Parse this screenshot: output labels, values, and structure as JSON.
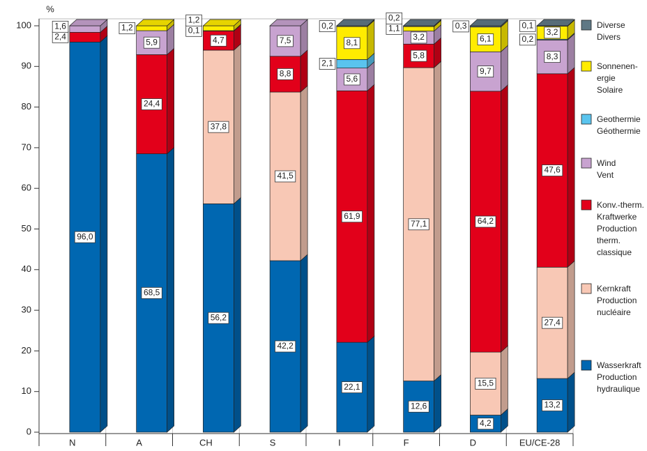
{
  "chart_data": {
    "type": "bar",
    "stacked": true,
    "y_label": "%",
    "categories": [
      "N",
      "A",
      "CH",
      "S",
      "I",
      "F",
      "D",
      "EU/CE-28"
    ],
    "ylim": [
      0,
      100
    ],
    "yticks": [
      0,
      10,
      20,
      30,
      40,
      50,
      60,
      70,
      80,
      90,
      100
    ],
    "series": [
      {
        "name": [
          "Wasserkraft",
          "Production",
          "hydraulique"
        ],
        "color": "#0067b1",
        "values": [
          96.0,
          68.5,
          56.2,
          42.2,
          22.1,
          12.6,
          4.2,
          13.2
        ],
        "value_labels": [
          "96,0",
          "68,5",
          "56,2",
          "42,2",
          "22,1",
          "12,6",
          "4,2",
          "13,2"
        ]
      },
      {
        "name": [
          "Kernkraft",
          "Production",
          "nucléaire"
        ],
        "color": "#f8c8b5",
        "values": [
          null,
          null,
          37.8,
          41.5,
          null,
          77.1,
          15.5,
          27.4
        ],
        "value_labels": [
          null,
          null,
          "37,8",
          "41,5",
          null,
          "77,1",
          "15,5",
          "27,4"
        ]
      },
      {
        "name": [
          "Konv.-therm.",
          "Kraftwerke",
          "Production",
          "therm.",
          "classique"
        ],
        "color": "#e2001a",
        "values": [
          2.4,
          24.4,
          4.7,
          8.8,
          61.9,
          5.8,
          64.2,
          47.6
        ],
        "value_labels": [
          "2,4",
          "24,4",
          "4,7",
          "8,8",
          "61,9",
          "5,8",
          "64,2",
          "47,6"
        ]
      },
      {
        "name": [
          "Wind",
          "Vent"
        ],
        "color": "#c8a3d0",
        "values": [
          1.6,
          5.9,
          0.1,
          7.5,
          5.6,
          3.2,
          9.7,
          8.3
        ],
        "value_labels": [
          "1,6",
          "5,9",
          "0,1",
          "7,5",
          "5,6",
          "3,2",
          "9,7",
          "8,3"
        ]
      },
      {
        "name": [
          "Geothermie",
          "Géothermie"
        ],
        "color": "#5ac4ee",
        "values": [
          null,
          null,
          null,
          null,
          2.1,
          null,
          null,
          0.2
        ],
        "value_labels": [
          null,
          null,
          null,
          null,
          "2,1",
          null,
          null,
          "0,2"
        ]
      },
      {
        "name": [
          "Sonnenen-",
          "ergie",
          "Solaire"
        ],
        "color": "#ffec00",
        "values": [
          null,
          1.2,
          1.2,
          null,
          8.1,
          1.1,
          6.1,
          3.2
        ],
        "value_labels": [
          null,
          "1,2",
          "1,2",
          null,
          "8,1",
          "1,1",
          "6,1",
          "3,2"
        ]
      },
      {
        "name": [
          "Diverse",
          "Divers"
        ],
        "color": "#5f7885",
        "values": [
          null,
          null,
          null,
          null,
          0.2,
          0.2,
          0.3,
          0.1
        ],
        "value_labels": [
          null,
          null,
          null,
          null,
          "0,2",
          "0,2",
          "0,3",
          "0,1"
        ]
      }
    ]
  }
}
